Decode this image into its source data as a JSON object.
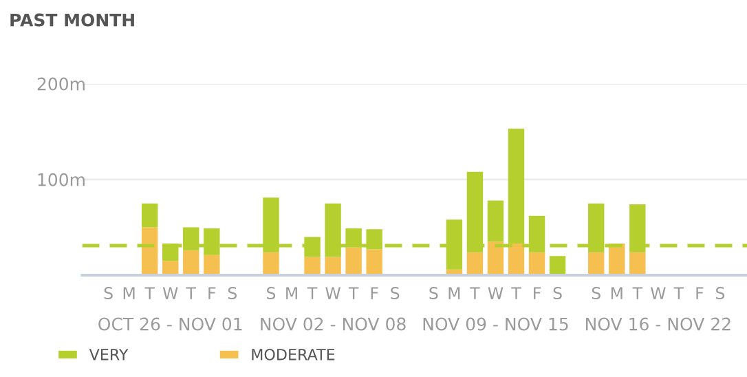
{
  "chart_data": {
    "type": "bar",
    "stacked": true,
    "title": "PAST MONTH",
    "categories": [
      "S",
      "M",
      "T",
      "W",
      "T",
      "F",
      "S",
      "S",
      "M",
      "T",
      "W",
      "T",
      "F",
      "S",
      "S",
      "M",
      "T",
      "W",
      "T",
      "F",
      "S",
      "S",
      "M",
      "T",
      "W",
      "T",
      "F",
      "S"
    ],
    "series": [
      {
        "name": "MODERATE",
        "color": "#f6c050",
        "values": [
          null,
          null,
          50,
          15,
          26,
          21,
          null,
          24,
          null,
          19,
          19,
          29,
          27,
          null,
          null,
          6,
          24,
          35,
          33,
          24,
          0,
          24,
          33,
          24,
          null,
          null,
          null,
          null
        ]
      },
      {
        "name": "VERY",
        "color": "#b5cf2f",
        "values": [
          null,
          null,
          25,
          18,
          24,
          28,
          null,
          57,
          null,
          21,
          56,
          20,
          21,
          null,
          null,
          52,
          84,
          43,
          120,
          38,
          20,
          51,
          0,
          50,
          null,
          null,
          null,
          null
        ]
      }
    ],
    "annotations": [
      "OCT 26 - NOV 01",
      "NOV 02 - NOV 08",
      "NOV 09 - NOV 15",
      "NOV 16 - NOV 22"
    ],
    "ylim": [
      0,
      200
    ],
    "yticks": [
      {
        "value": 100,
        "label": "100m"
      },
      {
        "value": 200,
        "label": "200m"
      }
    ],
    "grid": "y",
    "legend": "bottom left",
    "ref_lines": [
      {
        "axis": "y",
        "value": 31,
        "label": null,
        "color": "#b5cf2f",
        "line_style": "dashed"
      }
    ]
  }
}
